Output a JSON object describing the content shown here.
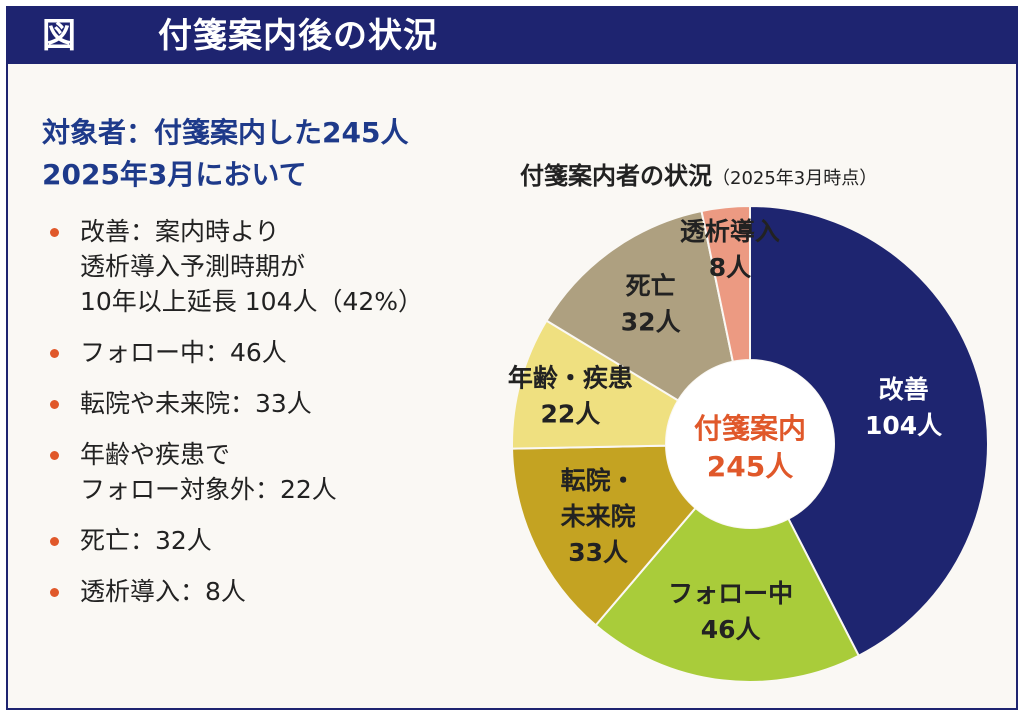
{
  "header": {
    "figure_label": "図",
    "title": "付箋案内後の状況"
  },
  "subject": {
    "line1": "対象者：付箋案内した245人",
    "line2": "2025年3月において"
  },
  "bullets": [
    {
      "lines": [
        "改善：案内時より",
        "透析導入予測時期が",
        "10年以上延長 104人（42%）"
      ]
    },
    {
      "lines": [
        "フォロー中：46人"
      ]
    },
    {
      "lines": [
        "転院や未来院：33人"
      ]
    },
    {
      "lines": [
        "年齢や疾患で",
        "フォロー対象外：22人"
      ]
    },
    {
      "lines": [
        "死亡：32人"
      ]
    },
    {
      "lines": [
        "透析導入：8人"
      ]
    }
  ],
  "colors": {
    "accent": "#e0582a",
    "header": "#1e2470",
    "text": "#1e3a8a"
  },
  "chart_data": {
    "type": "pie",
    "style": "donut",
    "title": "付箋案内者の状況",
    "title_note": "（2025年3月時点）",
    "center_label": [
      "付箋案内",
      "245人"
    ],
    "total": 245,
    "slices": [
      {
        "name": "改善",
        "value": 104,
        "label": [
          "改善",
          "104人"
        ],
        "color": "#1e2570",
        "text_color": "#ffffff"
      },
      {
        "name": "フォロー中",
        "value": 46,
        "label": [
          "フォロー中",
          "46人"
        ],
        "color": "#a9cc3a",
        "text_color": "#222222"
      },
      {
        "name": "転院・未来院",
        "value": 33,
        "label": [
          "転院・",
          "未来院",
          "33人"
        ],
        "color": "#c4a322",
        "text_color": "#222222"
      },
      {
        "name": "年齢・疾患",
        "value": 22,
        "label": [
          "年齢・疾患",
          "22人"
        ],
        "color": "#efe080",
        "text_color": "#222222"
      },
      {
        "name": "死亡",
        "value": 32,
        "label": [
          "死亡",
          "32人"
        ],
        "color": "#aea080",
        "text_color": "#222222"
      },
      {
        "name": "透析導入",
        "value": 8,
        "label": [
          "透析導入",
          "8人"
        ],
        "color": "#ec9a82",
        "text_color": "#222222"
      }
    ]
  }
}
